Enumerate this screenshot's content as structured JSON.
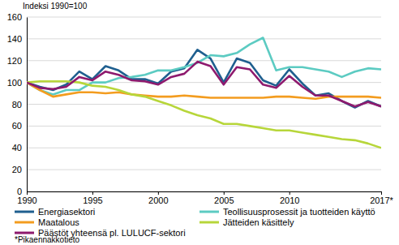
{
  "chart_data": {
    "type": "line",
    "y_label": "Indeksi 1990=100",
    "footnote": "*Pikaennakkotieto",
    "x": [
      1990,
      1991,
      1992,
      1993,
      1994,
      1995,
      1996,
      1997,
      1998,
      1999,
      2000,
      2001,
      2002,
      2003,
      2004,
      2005,
      2006,
      2007,
      2008,
      2009,
      2010,
      2011,
      2012,
      2013,
      2014,
      2015,
      2016,
      2017
    ],
    "xlim": [
      1990,
      2017
    ],
    "xticks": [
      1990,
      1995,
      2000,
      2005,
      2010,
      {
        "value": 2017,
        "label": "2017*"
      }
    ],
    "ylim": [
      0,
      160
    ],
    "yticks": [
      0,
      20,
      40,
      60,
      80,
      100,
      120,
      140,
      160
    ],
    "grid": true,
    "legend": "bottom",
    "series": [
      {
        "name": "Energiasektori",
        "color": "#1f5f8f",
        "values": [
          100,
          96,
          93,
          98,
          110,
          103,
          115,
          111,
          103,
          103,
          99,
          110,
          113,
          130,
          122,
          100,
          122,
          118,
          102,
          97,
          112,
          99,
          88,
          90,
          83,
          77,
          83,
          78
        ]
      },
      {
        "name": "Teollisuusprosessit ja tuotteiden käyttö",
        "color": "#5ccbc2",
        "values": [
          100,
          93,
          89,
          93,
          93,
          100,
          100,
          104,
          105,
          107,
          111,
          111,
          114,
          118,
          125,
          124,
          127,
          135,
          141,
          111,
          114,
          114,
          112,
          110,
          105,
          110,
          113,
          112
        ]
      },
      {
        "name": "Maatalous",
        "color": "#f39c1f",
        "values": [
          100,
          93,
          87,
          89,
          91,
          91,
          90,
          91,
          89,
          88,
          87,
          87,
          88,
          87,
          86,
          86,
          86,
          86,
          86,
          87,
          87,
          86,
          85,
          87,
          87,
          87,
          87,
          86
        ]
      },
      {
        "name": "Jätteiden käsittely",
        "color": "#b7d63a",
        "values": [
          100,
          101,
          101,
          101,
          100,
          97,
          96,
          93,
          89,
          87,
          83,
          79,
          74,
          70,
          67,
          62,
          62,
          60,
          58,
          56,
          56,
          54,
          52,
          50,
          48,
          47,
          44,
          40
        ]
      },
      {
        "name": "Päästöt yhteensä pl. LULUCF-sektori",
        "color": "#8e1a6e",
        "values": [
          100,
          95,
          94,
          96,
          105,
          102,
          110,
          107,
          102,
          101,
          98,
          105,
          108,
          119,
          115,
          98,
          114,
          112,
          98,
          95,
          106,
          96,
          88,
          88,
          83,
          78,
          82,
          78
        ]
      }
    ]
  }
}
